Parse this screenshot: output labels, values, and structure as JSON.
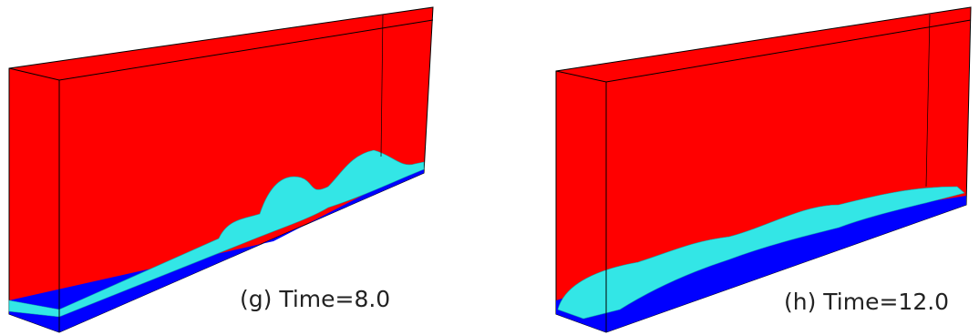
{
  "panels": [
    {
      "caption": "(g) Time=8.0"
    },
    {
      "caption": "(h) Time=12.0"
    }
  ]
}
